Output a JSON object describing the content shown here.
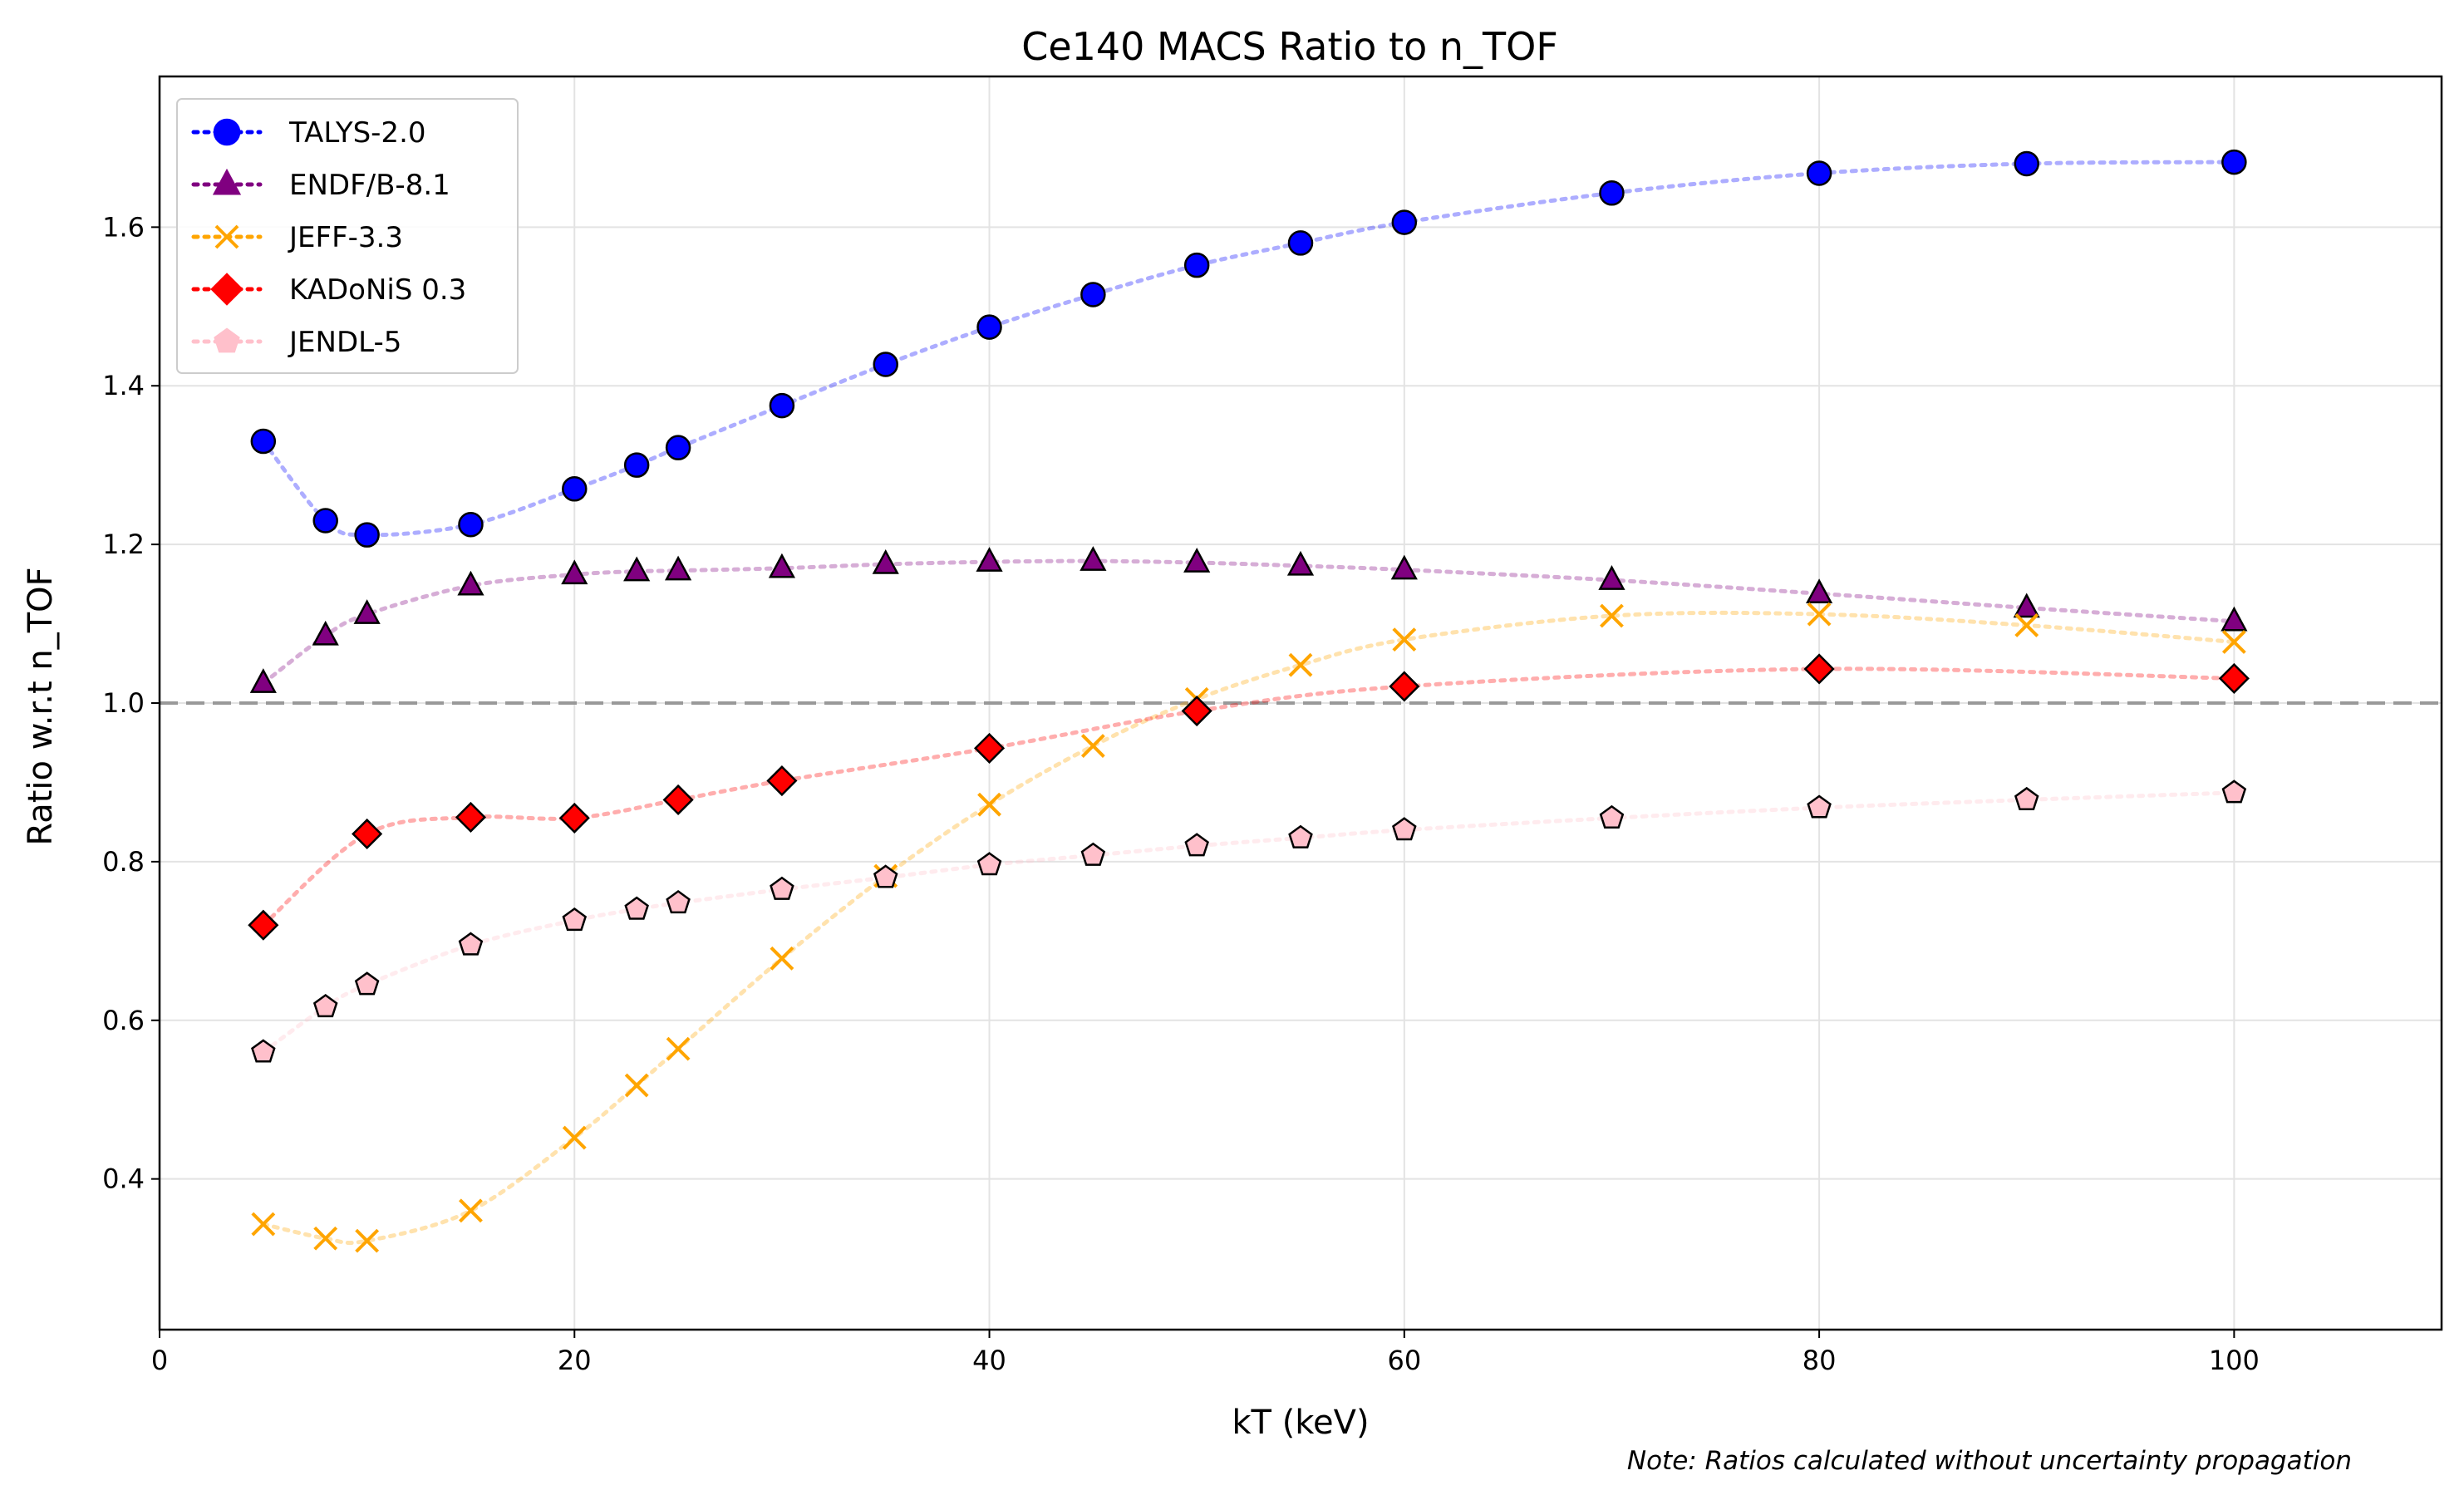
{
  "chart_data": {
    "type": "line",
    "title": "Ce140 MACS Ratio to n_TOF",
    "xlabel": "kT (keV)",
    "ylabel": "Ratio w.r.t n_TOF",
    "xlim": [
      0,
      110
    ],
    "ylim": [
      0.21,
      1.79
    ],
    "xticks": [
      0,
      20,
      40,
      60,
      80,
      100
    ],
    "yticks": [
      0.4,
      0.6,
      0.8,
      1.0,
      1.2,
      1.4,
      1.6
    ],
    "ytick_labels": [
      "0.4",
      "0.6",
      "0.8",
      "1.0",
      "1.2",
      "1.4",
      "1.6"
    ],
    "grid": true,
    "legend_position": "top-left",
    "reference_line": {
      "y": 1.0,
      "color": "#999999",
      "style": "dashed"
    },
    "note": "Note: Ratios calculated without uncertainty propagation",
    "series": [
      {
        "name": "TALYS-2.0",
        "color": "#0000ff",
        "marker": "circle",
        "x": [
          5,
          8,
          10,
          15,
          20,
          23,
          25,
          30,
          35,
          40,
          45,
          50,
          55,
          60,
          70,
          80,
          90,
          100
        ],
        "y": [
          1.33,
          1.23,
          1.212,
          1.225,
          1.27,
          1.3,
          1.322,
          1.375,
          1.427,
          1.474,
          1.515,
          1.552,
          1.58,
          1.606,
          1.643,
          1.668,
          1.68,
          1.682
        ]
      },
      {
        "name": "ENDF/B-8.1",
        "color": "#800080",
        "marker": "triangle",
        "x": [
          5,
          8,
          10,
          15,
          20,
          23,
          25,
          30,
          35,
          40,
          45,
          50,
          55,
          60,
          70,
          80,
          90,
          100
        ],
        "y": [
          1.025,
          1.085,
          1.112,
          1.148,
          1.162,
          1.166,
          1.167,
          1.17,
          1.175,
          1.178,
          1.179,
          1.177,
          1.173,
          1.168,
          1.155,
          1.138,
          1.12,
          1.103
        ]
      },
      {
        "name": "JEFF-3.3",
        "color": "#ffa500",
        "marker": "x",
        "x": [
          5,
          8,
          10,
          15,
          20,
          23,
          25,
          30,
          35,
          40,
          45,
          50,
          55,
          60,
          70,
          80,
          90,
          100
        ],
        "y": [
          0.343,
          0.325,
          0.322,
          0.36,
          0.452,
          0.518,
          0.564,
          0.678,
          0.782,
          0.872,
          0.946,
          1.005,
          1.048,
          1.08,
          1.11,
          1.112,
          1.098,
          1.077
        ]
      },
      {
        "name": "KADoNiS 0.3",
        "color": "#ff0000",
        "marker": "diamond",
        "x": [
          5,
          10,
          15,
          20,
          25,
          30,
          40,
          50,
          60,
          80,
          100
        ],
        "y": [
          0.72,
          0.835,
          0.856,
          0.855,
          0.878,
          0.902,
          0.943,
          0.99,
          1.021,
          1.043,
          1.031
        ]
      },
      {
        "name": "JENDL-5",
        "color": "#ffc0cb",
        "marker": "pentagon",
        "x": [
          5,
          8,
          10,
          15,
          20,
          23,
          25,
          30,
          35,
          40,
          45,
          50,
          55,
          60,
          70,
          80,
          90,
          100
        ],
        "y": [
          0.56,
          0.617,
          0.645,
          0.695,
          0.726,
          0.74,
          0.748,
          0.765,
          0.78,
          0.796,
          0.808,
          0.82,
          0.83,
          0.84,
          0.855,
          0.868,
          0.878,
          0.887
        ]
      }
    ]
  }
}
